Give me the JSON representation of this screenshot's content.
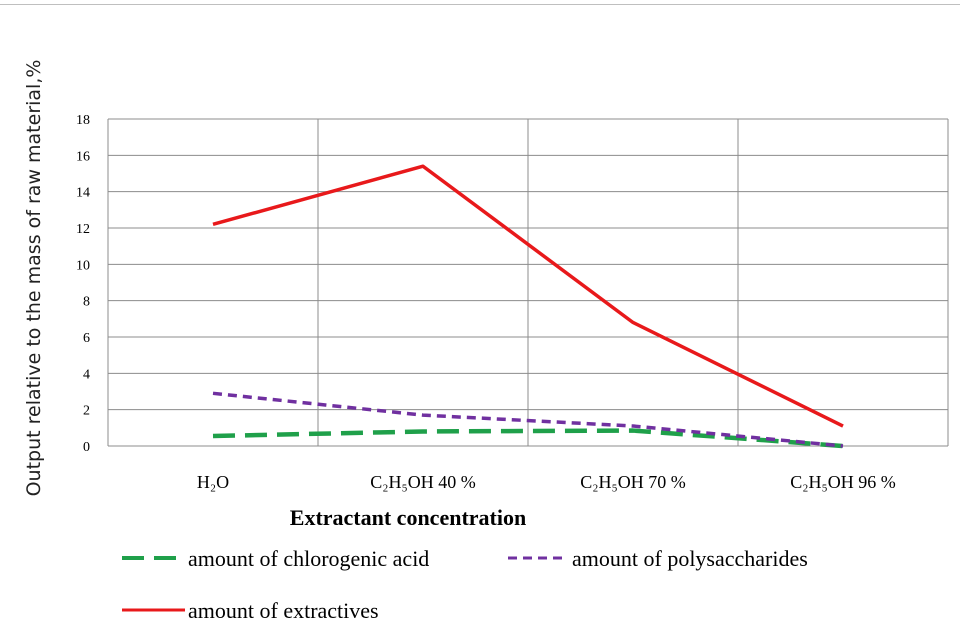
{
  "chart_data": {
    "type": "line",
    "title": "",
    "xlabel": "Extractant concentration",
    "ylabel": "Output relative to the mass of raw material,%",
    "categories": [
      "H₂O",
      "C₂H₅OH 40 %",
      "C₂H₅OH  70 %",
      "C₂H₅OH 96 %"
    ],
    "ylim": [
      0,
      18
    ],
    "yticks": [
      0,
      2,
      4,
      6,
      8,
      10,
      12,
      14,
      16,
      18
    ],
    "grid": true,
    "legend_position": "bottom",
    "series": [
      {
        "name": "amount of chlorogenic acid",
        "values": [
          0.55,
          0.8,
          0.85,
          0.0
        ],
        "color": "#1fa04a",
        "style": "long-dash"
      },
      {
        "name": "amount of polysaccharides",
        "values": [
          2.9,
          1.7,
          1.1,
          0.0
        ],
        "color": "#7030a0",
        "style": "dash"
      },
      {
        "name": "amount of extractives",
        "values": [
          12.2,
          15.4,
          6.8,
          1.1
        ],
        "color": "#e8191b",
        "style": "solid"
      }
    ]
  }
}
